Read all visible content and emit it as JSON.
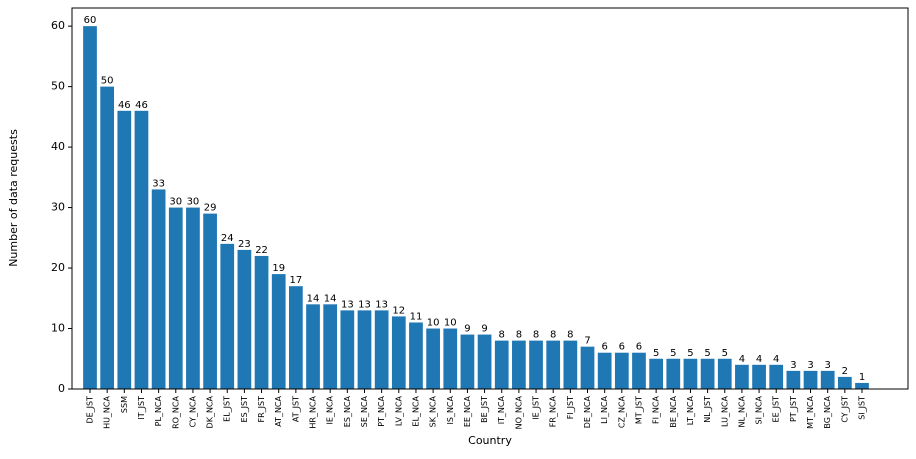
{
  "chart_data": {
    "type": "bar",
    "x_label": "Country",
    "y_label": "Number of data requests",
    "categories": [
      "DE_JST",
      "HU_NCA",
      "SSM",
      "IT_JST",
      "PL_NCA",
      "RO_NCA",
      "CY_NCA",
      "DK_NCA",
      "EL_JST",
      "ES_JST",
      "FR_JST",
      "AT_NCA",
      "AT_JST",
      "HR_NCA",
      "IE_NCA",
      "ES_NCA",
      "SE_NCA",
      "PT_NCA",
      "LV_NCA",
      "EL_NCA",
      "SK_NCA",
      "IS_NCA",
      "EE_NCA",
      "BE_JST",
      "IT_NCA",
      "NO_NCA",
      "IE_JST",
      "FR_NCA",
      "FI_JST",
      "DE_NCA",
      "LI_NCA",
      "CZ_NCA",
      "MT_JST",
      "FI_NCA",
      "BE_NCA",
      "LT_NCA",
      "NL_JST",
      "LU_NCA",
      "NL_NCA",
      "SI_NCA",
      "EE_JST",
      "PT_JST",
      "MT_NCA",
      "BG_NCA",
      "CY_JST",
      "SI_JST"
    ],
    "values": [
      60,
      50,
      46,
      46,
      33,
      30,
      30,
      29,
      24,
      23,
      22,
      19,
      17,
      14,
      14,
      13,
      13,
      13,
      12,
      11,
      10,
      10,
      9,
      9,
      8,
      8,
      8,
      8,
      8,
      7,
      6,
      6,
      6,
      5,
      5,
      5,
      5,
      5,
      4,
      4,
      4,
      3,
      3,
      3,
      2,
      1
    ],
    "color": "#1f77b4",
    "ylim": [
      0,
      63
    ],
    "yticks": [
      0,
      10,
      20,
      30,
      40,
      50,
      60
    ],
    "grid": false
  }
}
